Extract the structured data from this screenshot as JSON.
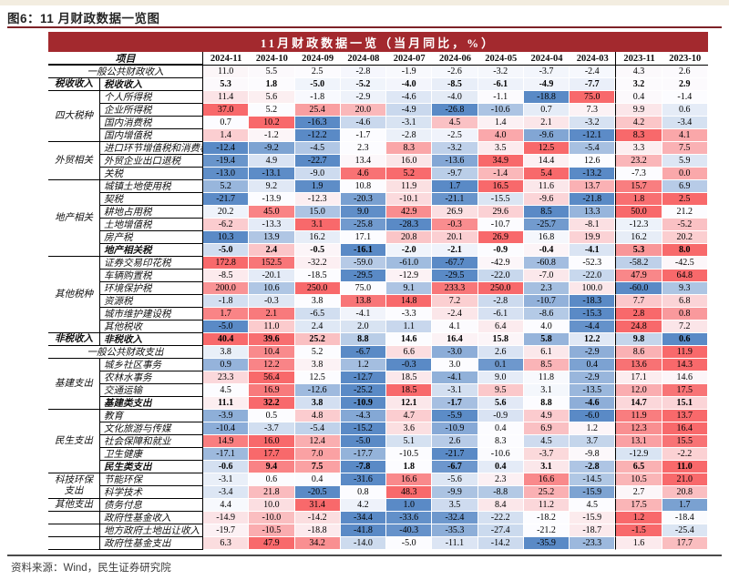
{
  "figure_title": "图6：11 月财政数据一览图",
  "source_note": "资料来源：Wind，民生证券研究院",
  "table": {
    "title": "11月财政数据一览（当月同比，%）",
    "item_header": "项目",
    "columns": [
      "2024-11",
      "2024-10",
      "2024-09",
      "2024-08",
      "2024-07",
      "2024-06",
      "2024-05",
      "2024-04",
      "2024-03",
      "2023-11",
      "2023-10"
    ],
    "divider_before_column": "2023-11",
    "groups": [
      {
        "label": "",
        "full_span": true,
        "rows": [
          {
            "name": "一般公共财政收入",
            "pale": true,
            "values": [
              11.0,
              5.5,
              2.5,
              -2.8,
              -1.9,
              -2.6,
              -3.2,
              -3.7,
              -2.4,
              4.3,
              2.6
            ]
          }
        ]
      },
      {
        "label": "税收收入",
        "bold": true,
        "rows": [
          {
            "name": "税收收入",
            "bold": true,
            "pale": true,
            "values": [
              5.3,
              1.8,
              -5.0,
              -5.2,
              -4.0,
              -8.5,
              -6.1,
              -4.9,
              -7.7,
              3.2,
              2.9
            ]
          }
        ]
      },
      {
        "label": "四大税种",
        "rows": [
          {
            "name": "个人所得税",
            "values": [
              11.4,
              5.6,
              -1.8,
              -2.9,
              -4.6,
              -4.0,
              -1.1,
              -18.8,
              75.0,
              0.4,
              -1.4
            ]
          },
          {
            "name": "企业所得税",
            "values": [
              37.0,
              5.2,
              25.4,
              20.0,
              -4.9,
              -26.8,
              -10.6,
              0.7,
              7.3,
              9.9,
              0.6
            ]
          },
          {
            "name": "国内消费税",
            "values": [
              0.7,
              10.2,
              -16.3,
              -4.6,
              -3.1,
              4.5,
              1.4,
              2.1,
              -3.2,
              4.2,
              -3.4
            ]
          },
          {
            "name": "国内增值税",
            "values": [
              1.4,
              -1.2,
              -12.2,
              -1.7,
              -2.8,
              -2.5,
              4.0,
              -9.6,
              -12.1,
              8.3,
              4.1
            ]
          }
        ]
      },
      {
        "label": "外贸相关",
        "rows": [
          {
            "name": "进口环节增值税和消费税",
            "values": [
              -12.4,
              -9.2,
              -4.5,
              2.3,
              8.3,
              -3.2,
              3.5,
              12.5,
              -5.4,
              3.3,
              7.5
            ]
          },
          {
            "name": "外贸企业出口退税",
            "values": [
              -19.4,
              4.9,
              -22.7,
              13.4,
              16.0,
              -13.6,
              34.9,
              14.4,
              12.6,
              23.2,
              5.9
            ]
          },
          {
            "name": "关税",
            "values": [
              -13.0,
              -13.1,
              -9.0,
              4.6,
              5.2,
              -9.7,
              -1.4,
              5.4,
              -13.2,
              -7.3,
              0.0
            ]
          }
        ]
      },
      {
        "label": "地产相关",
        "rows": [
          {
            "name": "城镇土地使用税",
            "values": [
              5.2,
              9.2,
              1.9,
              10.8,
              11.9,
              1.7,
              16.5,
              11.6,
              13.7,
              15.7,
              6.9
            ]
          },
          {
            "name": "契税",
            "values": [
              -21.7,
              -13.9,
              -12.3,
              -20.3,
              -10.1,
              -21.1,
              -15.5,
              -9.6,
              -21.8,
              1.8,
              2.5
            ]
          },
          {
            "name": "耕地占用税",
            "values": [
              20.2,
              45.0,
              15.0,
              9.0,
              42.9,
              26.9,
              29.6,
              8.5,
              13.3,
              50.0,
              21.2
            ]
          },
          {
            "name": "土地增值税",
            "values": [
              -6.2,
              -13.3,
              3.1,
              -25.8,
              -28.3,
              -0.3,
              -10.7,
              -25.7,
              -8.1,
              -12.3,
              -5.2
            ]
          },
          {
            "name": "房产税",
            "values": [
              10.3,
              13.9,
              16.2,
              17.1,
              20.8,
              20.1,
              26.9,
              16.8,
              19.9,
              16.2,
              20.2
            ]
          },
          {
            "name": "地产相关税",
            "bold": true,
            "values": [
              -5.0,
              2.4,
              -0.5,
              -16.1,
              -2.0,
              -2.1,
              -0.9,
              -0.4,
              -4.1,
              5.3,
              8.0
            ]
          }
        ]
      },
      {
        "label": "其他税种",
        "rows": [
          {
            "name": "证券交易印花税",
            "values": [
              172.8,
              152.5,
              -32.2,
              -59.0,
              -61.0,
              -67.7,
              -42.9,
              -60.8,
              -52.3,
              -58.2,
              -42.5
            ]
          },
          {
            "name": "车辆购置税",
            "values": [
              -8.5,
              -20.1,
              -18.5,
              -29.5,
              -12.9,
              -29.5,
              -22.0,
              -7.0,
              -22.0,
              47.9,
              64.8
            ]
          },
          {
            "name": "环境保护税",
            "values": [
              200.0,
              10.6,
              250.0,
              75.0,
              9.1,
              233.3,
              250.0,
              2.3,
              100.0,
              -60.0,
              9.3
            ]
          },
          {
            "name": "资源税",
            "values": [
              -1.8,
              -0.3,
              3.8,
              13.8,
              14.8,
              7.2,
              -2.8,
              -10.7,
              -18.3,
              7.7,
              6.8
            ]
          },
          {
            "name": "城市维护建设税",
            "values": [
              1.7,
              2.1,
              -6.5,
              -4.1,
              -3.3,
              -2.4,
              -6.1,
              -8.6,
              -15.3,
              2.8,
              0.8
            ]
          },
          {
            "name": "其他税收",
            "values": [
              -5.0,
              11.0,
              2.4,
              2.0,
              1.1,
              4.1,
              6.4,
              4.0,
              -4.4,
              24.8,
              7.2
            ]
          }
        ]
      },
      {
        "label": "非税收入",
        "bold": true,
        "rows": [
          {
            "name": "非税收入",
            "bold": true,
            "values": [
              40.4,
              39.6,
              25.2,
              8.8,
              14.6,
              16.4,
              15.8,
              5.8,
              12.2,
              9.8,
              0.6
            ]
          }
        ]
      },
      {
        "label": "",
        "full_span": true,
        "rows": [
          {
            "name": "一般公共财政支出",
            "values": [
              3.8,
              10.4,
              5.2,
              -6.7,
              6.6,
              -3.0,
              2.6,
              6.1,
              -2.9,
              8.6,
              11.9
            ]
          }
        ]
      },
      {
        "label": "基建支出",
        "rows": [
          {
            "name": "城乡社区事务",
            "values": [
              0.9,
              12.2,
              3.8,
              1.2,
              -0.3,
              3.0,
              0.1,
              8.5,
              0.4,
              13.6,
              14.3
            ]
          },
          {
            "name": "农林水事务",
            "values": [
              23.3,
              56.4,
              12.5,
              -12.7,
              18.5,
              -4.1,
              9.0,
              11.8,
              -2.9,
              17.1,
              14.6
            ]
          },
          {
            "name": "交通运输",
            "values": [
              4.5,
              16.9,
              -12.6,
              -25.2,
              18.5,
              -3.1,
              9.5,
              3.1,
              -13.5,
              12.0,
              17.5
            ]
          },
          {
            "name": "基建类支出",
            "bold": true,
            "values": [
              11.1,
              32.2,
              3.8,
              -10.9,
              12.1,
              -1.7,
              5.6,
              8.8,
              -4.6,
              14.7,
              15.1
            ]
          }
        ]
      },
      {
        "label": "民生支出",
        "rows": [
          {
            "name": "教育",
            "values": [
              -3.9,
              0.5,
              4.8,
              -4.3,
              4.7,
              -5.9,
              -0.9,
              4.9,
              -6.0,
              11.9,
              13.7
            ]
          },
          {
            "name": "文化旅游与传媒",
            "values": [
              -10.4,
              -3.7,
              -5.4,
              -15.2,
              3.6,
              -10.9,
              0.4,
              6.9,
              1.2,
              12.3,
              16.4
            ]
          },
          {
            "name": "社会保障和就业",
            "values": [
              14.9,
              16.0,
              12.4,
              -5.0,
              5.1,
              2.6,
              8.3,
              4.5,
              3.7,
              13.1,
              15.5
            ]
          },
          {
            "name": "卫生健康",
            "values": [
              -17.1,
              17.7,
              7.0,
              -17.7,
              -10.5,
              -21.7,
              -10.6,
              -3.7,
              -9.8,
              -12.9,
              -2.2
            ]
          },
          {
            "name": "民生类支出",
            "bold": true,
            "values": [
              -0.6,
              9.4,
              7.5,
              -7.8,
              1.8,
              -6.7,
              0.4,
              3.1,
              -2.8,
              6.5,
              11.0
            ]
          }
        ]
      },
      {
        "label": "科技环保支出",
        "rows": [
          {
            "name": "节能环保",
            "values": [
              -3.1,
              0.6,
              0.4,
              -31.6,
              16.6,
              -5.6,
              2.3,
              16.6,
              -14.5,
              10.5,
              21.0
            ]
          },
          {
            "name": "科学技术",
            "values": [
              -3.4,
              21.8,
              -20.5,
              0.8,
              48.3,
              -9.9,
              -8.8,
              25.2,
              -15.9,
              2.7,
              20.8
            ]
          }
        ]
      },
      {
        "label": "其他支出",
        "rows": [
          {
            "name": "债务付息",
            "values": [
              4.4,
              10.0,
              31.4,
              4.2,
              1.0,
              3.5,
              8.4,
              11.2,
              4.5,
              17.5,
              1.7
            ]
          }
        ]
      },
      {
        "label": "",
        "rows": [
          {
            "name": "政府性基金收入",
            "values": [
              -14.9,
              -10.0,
              -14.2,
              -34.4,
              -33.6,
              -32.4,
              -22.2,
              -18.2,
              -15.9,
              1.2,
              -18.4
            ]
          }
        ]
      },
      {
        "label": "",
        "rows": [
          {
            "name": "地方政府土地出让收入",
            "values": [
              -19.7,
              -10.5,
              -18.8,
              -41.8,
              -40.3,
              -35.3,
              -27.4,
              -21.2,
              -18.7,
              -1.5,
              -25.4
            ]
          }
        ]
      },
      {
        "label": "",
        "rows": [
          {
            "name": "政府性基金支出",
            "values": [
              6.3,
              47.9,
              34.2,
              -14.0,
              -5.0,
              -11.1,
              -14.2,
              -35.9,
              -23.3,
              1.6,
              17.7
            ]
          }
        ]
      }
    ]
  },
  "colors": {
    "title_bar_bg": "#A3292E",
    "top_rule": "#7E2227",
    "bottom_rule": "#4A4A4A",
    "scale_red": "#F8696B",
    "scale_mid": "#FCFCFF",
    "scale_blue": "#5A8AC6"
  }
}
